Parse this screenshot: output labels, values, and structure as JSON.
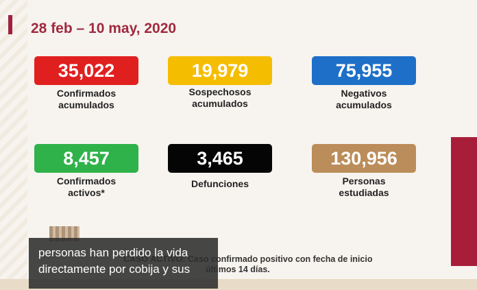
{
  "header": {
    "title": "28 feb – 10 may, 2020"
  },
  "cards": [
    {
      "value": "35,022",
      "label": [
        "Confirmados",
        "acumulados"
      ]
    },
    {
      "value": "19,979",
      "label": [
        "Sospechosos",
        "acumulados"
      ]
    },
    {
      "value": "75,955",
      "label": [
        "Negativos",
        "acumulados"
      ]
    },
    {
      "value": "8,457",
      "label": [
        "Confirmados",
        "activos*"
      ]
    },
    {
      "value": "3,465",
      "label": [
        "Defunciones"
      ]
    },
    {
      "value": "130,956",
      "label": [
        "Personas",
        "estudiadas"
      ]
    }
  ],
  "footnote": [
    "CASO ACTIVO: Caso confirmado positivo con fecha de inicio",
    "últimos 14 días."
  ],
  "caption": [
    "personas han perdido la vida",
    "directamente por cobija y sus"
  ]
}
